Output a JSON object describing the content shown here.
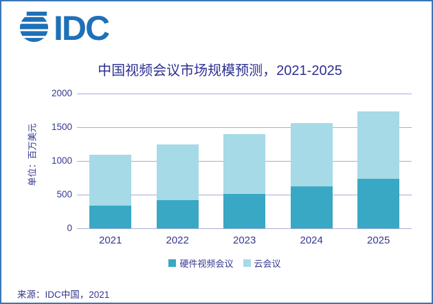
{
  "logo": {
    "text": "IDC"
  },
  "chart_data": {
    "type": "bar",
    "stacked": true,
    "title": "中国视频会议市场规模预测，2021-2025",
    "xlabel": "",
    "ylabel": "单位：百万美元",
    "categories": [
      "2021",
      "2022",
      "2023",
      "2024",
      "2025"
    ],
    "series": [
      {
        "name": "硬件视频会议",
        "color": "#38A8C4",
        "values": [
          340,
          420,
          515,
          620,
          735
        ]
      },
      {
        "name": "云会议",
        "color": "#A6DAE6",
        "values": [
          750,
          825,
          885,
          940,
          995
        ]
      }
    ],
    "totals": [
      1090,
      1245,
      1400,
      1560,
      1730
    ],
    "ylim": [
      0,
      2000
    ],
    "yticks": [
      0,
      500,
      1000,
      1500,
      2000
    ],
    "grid": true,
    "legend_position": "bottom"
  },
  "source": {
    "label": "来源：IDC中国，2021"
  },
  "colors": {
    "brand": "#1E70B8",
    "navy": "#34388F",
    "navy-dark": "#2D3091",
    "grid": "#A8ACD7",
    "border": "#3B74B5",
    "series-hardware": "#38A8C4",
    "series-cloud": "#A6DAE6"
  }
}
